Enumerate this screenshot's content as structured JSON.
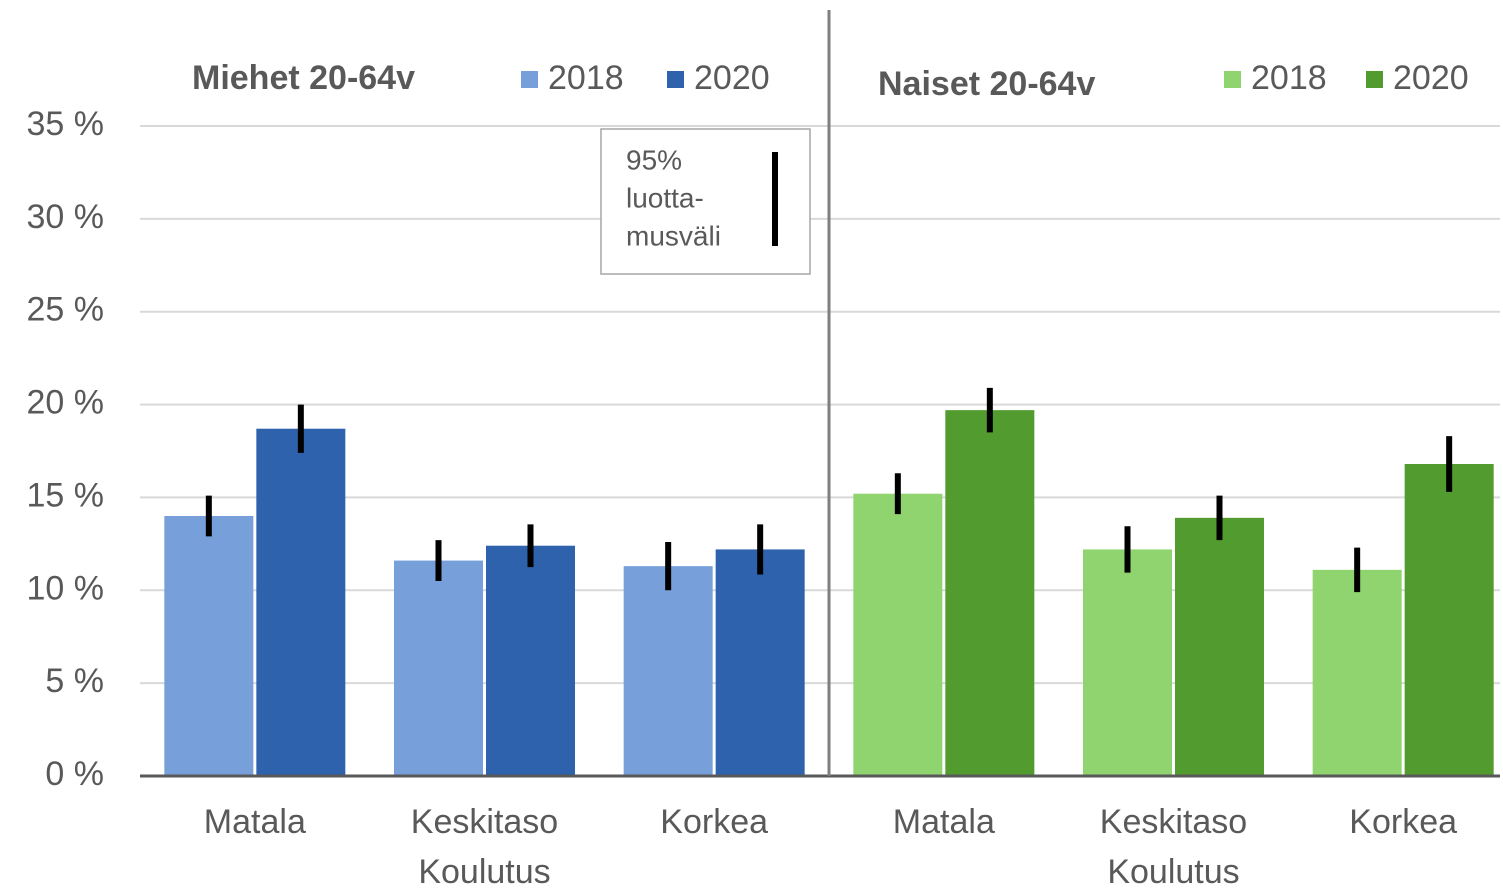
{
  "chart_data": {
    "type": "bar",
    "ylim": [
      0,
      35
    ],
    "yticks": [
      {
        "value": 0,
        "label": "0 %"
      },
      {
        "value": 5,
        "label": "5 %"
      },
      {
        "value": 10,
        "label": "10 %"
      },
      {
        "value": 15,
        "label": "15 %"
      },
      {
        "value": 20,
        "label": "20 %"
      },
      {
        "value": 25,
        "label": "25 %"
      },
      {
        "value": 30,
        "label": "30 %"
      },
      {
        "value": 35,
        "label": "35 %"
      }
    ],
    "grid": true,
    "annotation": [
      "95%",
      "luotta-",
      "musväli"
    ],
    "panels": [
      {
        "title": "Miehet 20-64v",
        "x_label": "Koulutus",
        "categories": [
          "Matala",
          "Keskitaso",
          "Korkea"
        ],
        "series": [
          {
            "name": "2018",
            "color": "#77a0db",
            "values": [
              14.0,
              11.6,
              11.3
            ],
            "errors": [
              1.1,
              1.1,
              1.3
            ]
          },
          {
            "name": "2020",
            "color": "#2e62ad",
            "values": [
              18.7,
              12.4,
              12.2
            ],
            "errors": [
              1.3,
              1.15,
              1.35
            ]
          }
        ]
      },
      {
        "title": "Naiset 20-64v",
        "x_label": "Koulutus",
        "categories": [
          "Matala",
          "Keskitaso",
          "Korkea"
        ],
        "series": [
          {
            "name": "2018",
            "color": "#8fd46f",
            "values": [
              15.2,
              12.2,
              11.1
            ],
            "errors": [
              1.1,
              1.25,
              1.2
            ]
          },
          {
            "name": "2020",
            "color": "#529b2f",
            "values": [
              19.7,
              13.9,
              16.8
            ],
            "errors": [
              1.2,
              1.2,
              1.5
            ]
          }
        ]
      }
    ]
  }
}
